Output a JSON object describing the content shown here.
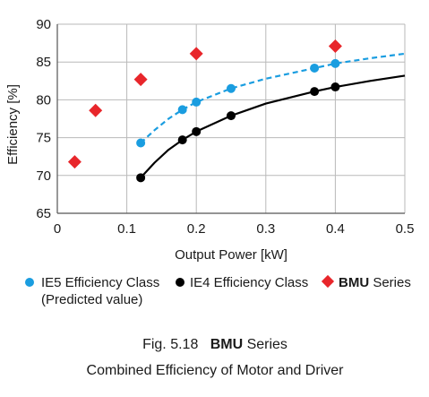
{
  "chart_data": {
    "type": "scatter",
    "xlabel": "Output Power [kW]",
    "ylabel": "Efficiency [%]",
    "xlim": [
      0,
      0.5
    ],
    "ylim": [
      65,
      90
    ],
    "x_ticks": [
      "0",
      "0.1",
      "0.2",
      "0.3",
      "0.4",
      "0.5"
    ],
    "y_ticks": [
      "65",
      "70",
      "75",
      "80",
      "85",
      "90"
    ],
    "grid": "both",
    "legend_position": "bottom",
    "series": [
      {
        "name": "IE5 Efficiency Class",
        "name_note": "(Predicted value)",
        "marker": "circle",
        "color": "#1a9de0",
        "line_style": "dashed",
        "points": [
          {
            "x": 0.12,
            "y": 74.3
          },
          {
            "x": 0.18,
            "y": 78.7
          },
          {
            "x": 0.2,
            "y": 79.7
          },
          {
            "x": 0.25,
            "y": 81.5
          },
          {
            "x": 0.37,
            "y": 84.2
          },
          {
            "x": 0.4,
            "y": 84.8
          }
        ]
      },
      {
        "name": "IE4 Efficiency Class",
        "marker": "circle",
        "color": "#000000",
        "line_style": "solid",
        "points": [
          {
            "x": 0.12,
            "y": 69.7
          },
          {
            "x": 0.18,
            "y": 74.7
          },
          {
            "x": 0.2,
            "y": 75.8
          },
          {
            "x": 0.25,
            "y": 77.9
          },
          {
            "x": 0.37,
            "y": 81.1
          },
          {
            "x": 0.4,
            "y": 81.7
          }
        ]
      },
      {
        "name_bold": "BMU",
        "name_rest": " Series",
        "marker": "diamond",
        "color": "#e8262b",
        "line_style": "none",
        "points": [
          {
            "x": 0.025,
            "y": 71.8
          },
          {
            "x": 0.055,
            "y": 78.6
          },
          {
            "x": 0.12,
            "y": 82.7
          },
          {
            "x": 0.2,
            "y": 86.1
          },
          {
            "x": 0.4,
            "y": 87.1
          }
        ]
      }
    ],
    "ie5_curve": [
      {
        "x": 0.12,
        "y": 74.3
      },
      {
        "x": 0.14,
        "y": 76.0
      },
      {
        "x": 0.16,
        "y": 77.5
      },
      {
        "x": 0.18,
        "y": 78.7
      },
      {
        "x": 0.2,
        "y": 79.7
      },
      {
        "x": 0.25,
        "y": 81.5
      },
      {
        "x": 0.3,
        "y": 82.8
      },
      {
        "x": 0.37,
        "y": 84.2
      },
      {
        "x": 0.4,
        "y": 84.8
      },
      {
        "x": 0.45,
        "y": 85.5
      },
      {
        "x": 0.5,
        "y": 86.1
      }
    ],
    "ie4_curve": [
      {
        "x": 0.12,
        "y": 69.7
      },
      {
        "x": 0.14,
        "y": 71.7
      },
      {
        "x": 0.16,
        "y": 73.4
      },
      {
        "x": 0.18,
        "y": 74.7
      },
      {
        "x": 0.2,
        "y": 75.8
      },
      {
        "x": 0.25,
        "y": 77.9
      },
      {
        "x": 0.3,
        "y": 79.5
      },
      {
        "x": 0.37,
        "y": 81.1
      },
      {
        "x": 0.4,
        "y": 81.7
      },
      {
        "x": 0.45,
        "y": 82.5
      },
      {
        "x": 0.5,
        "y": 83.2
      }
    ]
  },
  "caption": {
    "fig_prefix": "Fig. 5.18",
    "fig_bold": "BMU",
    "fig_suffix": " Series",
    "line2": "Combined Efficiency of Motor and Driver"
  },
  "colors": {
    "grid": "#b9b9b9",
    "axis": "#555555",
    "ie5": "#1a9de0",
    "ie4": "#000000",
    "bmu": "#e8262b"
  }
}
